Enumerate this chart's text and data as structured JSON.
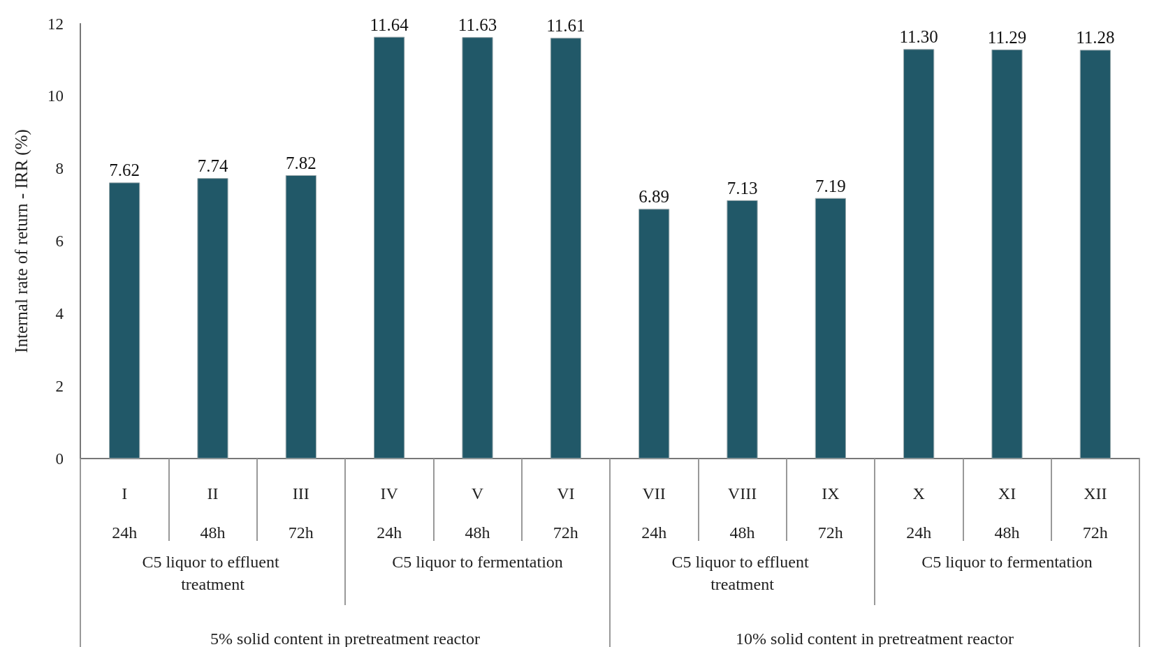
{
  "chart_data": {
    "type": "bar",
    "ylabel": "Internal rate of return - IRR (%)",
    "categories": [
      "I\n24h",
      "II\n48h",
      "III\n72h",
      "IV\n24h",
      "V\n48h",
      "VI\n72h",
      "VII\n24h",
      "VIII\n48h",
      "IX\n72h",
      "X\n24h",
      "XI\n48h",
      "XII\n72h"
    ],
    "values": [
      7.62,
      7.74,
      7.82,
      11.64,
      11.63,
      11.61,
      6.89,
      7.13,
      7.19,
      11.3,
      11.29,
      11.28
    ],
    "color": "#215868",
    "value_labels": [
      "7.62",
      "7.74",
      "7.82",
      "11.64",
      "11.63",
      "11.61",
      "6.89",
      "7.13",
      "7.19",
      "11.30",
      "11.29",
      "11.28"
    ],
    "ylim": [
      0,
      12
    ],
    "yticks": [
      0,
      2,
      4,
      6,
      8,
      10,
      12
    ],
    "grid": false,
    "annotations": [
      "C5 liquor to effluent treatment",
      "C5 liquor to fermentation",
      "C5 liquor to effluent treatment",
      "C5 liquor to fermentation",
      "5% solid content in pretreatment reactor",
      "10% solid content in pretreatment reactor"
    ]
  }
}
